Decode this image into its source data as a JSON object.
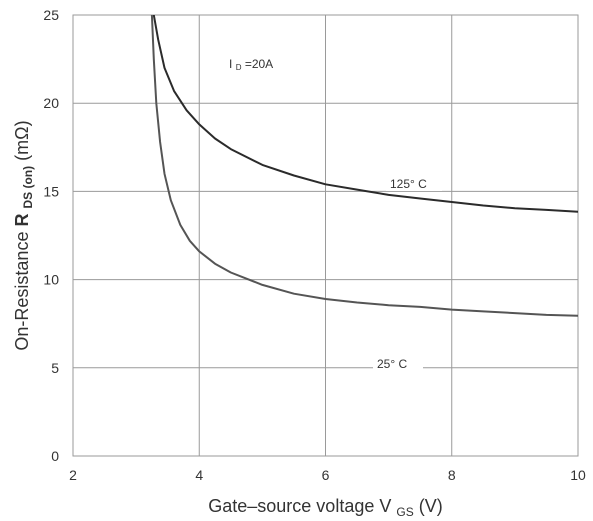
{
  "chart_data": {
    "type": "line",
    "xlabel": {
      "prefix": "Gate–source voltage V",
      "sub": "GS",
      "suffix": " (V)"
    },
    "ylabel": {
      "prefix": "On-Resistance ",
      "bold": "R",
      "sub": "DS (on)",
      "suffix": " (mΩ)"
    },
    "xlim": [
      2,
      10
    ],
    "ylim": [
      0,
      25
    ],
    "xticks": [
      "2",
      "4",
      "6",
      "8",
      "10"
    ],
    "yticks": [
      "0",
      "5",
      "10",
      "15",
      "20",
      "25"
    ],
    "grid": true,
    "annotations": {
      "condition": {
        "prefix": "I",
        "sub": "D",
        "suffix": "=20A"
      }
    },
    "series": [
      {
        "name": "125° C",
        "color": "#2b2b2b",
        "x": [
          3.28,
          3.35,
          3.45,
          3.6,
          3.8,
          4.0,
          4.25,
          4.5,
          5.0,
          5.5,
          6.0,
          6.5,
          7.0,
          7.5,
          8.0,
          8.5,
          9.0,
          9.5,
          10.0
        ],
        "y": [
          25.0,
          23.6,
          22.0,
          20.7,
          19.6,
          18.8,
          18.0,
          17.4,
          16.5,
          15.9,
          15.4,
          15.1,
          14.8,
          14.6,
          14.4,
          14.2,
          14.05,
          13.95,
          13.85
        ]
      },
      {
        "name": "25° C",
        "color": "#555555",
        "x": [
          3.25,
          3.28,
          3.32,
          3.38,
          3.45,
          3.55,
          3.7,
          3.85,
          4.0,
          4.25,
          4.5,
          5.0,
          5.5,
          6.0,
          6.5,
          7.0,
          7.5,
          8.0,
          8.5,
          9.0,
          9.5,
          10.0
        ],
        "y": [
          25.0,
          22.5,
          20.0,
          17.8,
          16.0,
          14.5,
          13.1,
          12.2,
          11.6,
          10.9,
          10.4,
          9.7,
          9.2,
          8.9,
          8.7,
          8.55,
          8.45,
          8.3,
          8.2,
          8.1,
          8.0,
          7.95
        ]
      }
    ]
  }
}
